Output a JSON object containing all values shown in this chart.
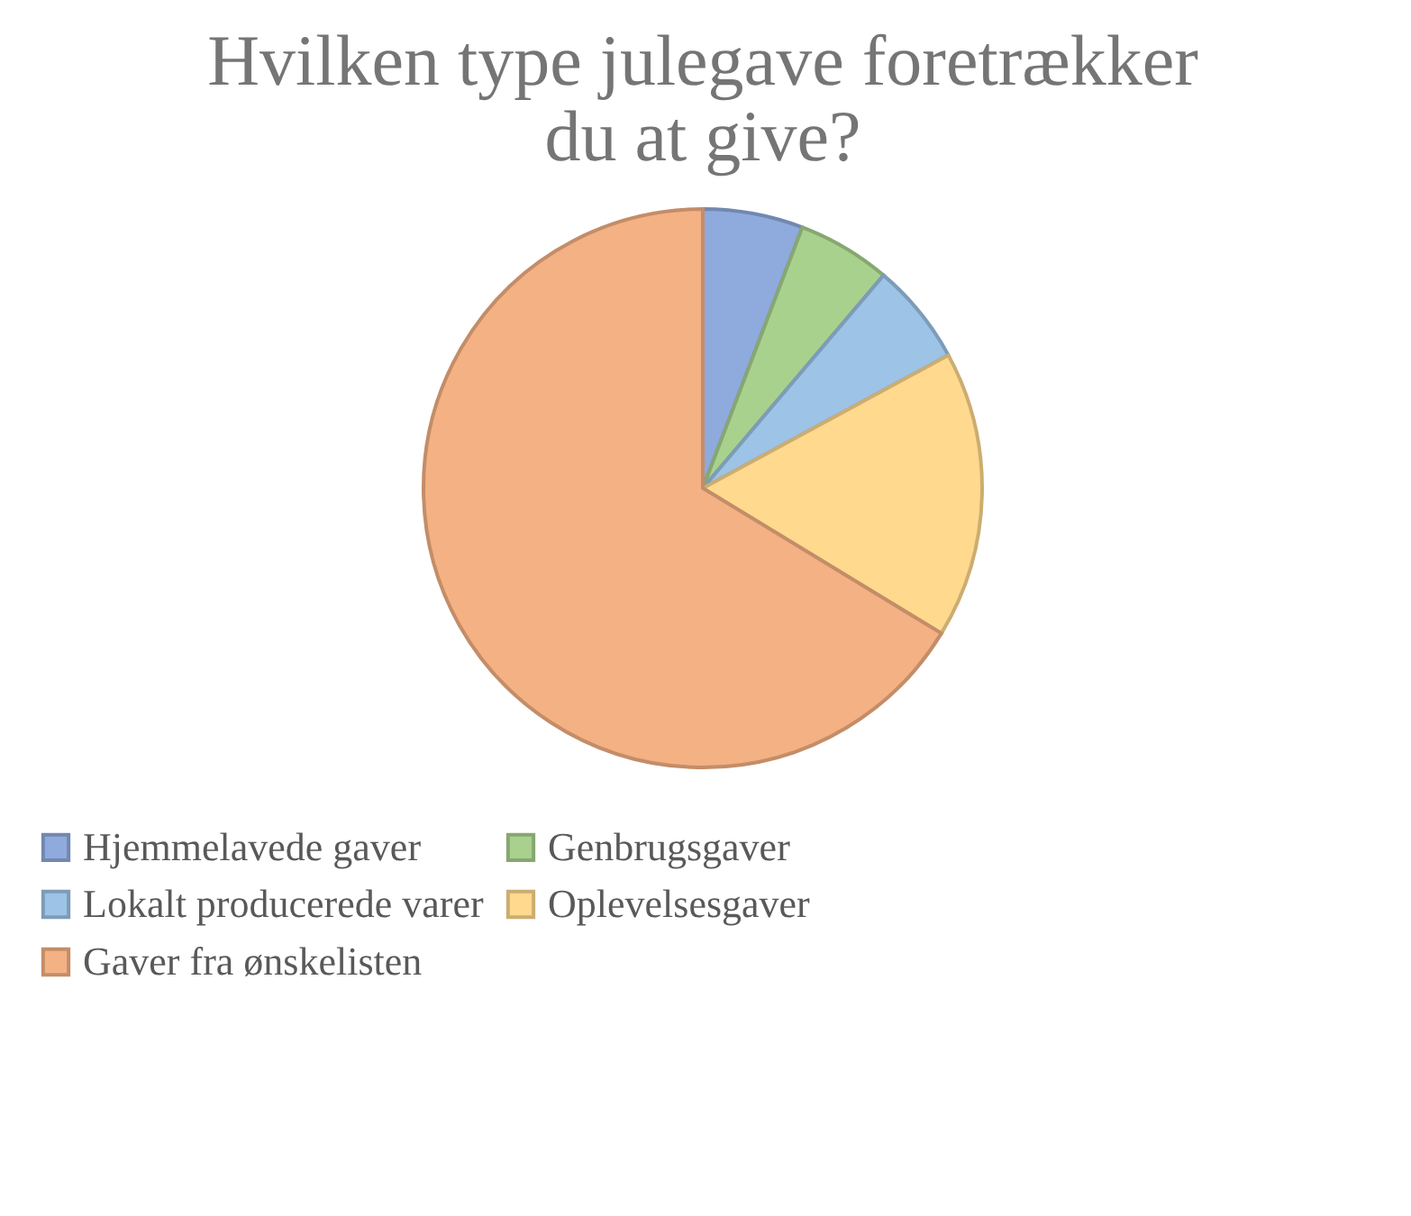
{
  "chart_data": {
    "type": "pie",
    "title": "Hvilken type julegave foretrækker du at give?",
    "categories": [
      "Hjemmelavede gaver",
      "Genbrugsgaver",
      "Lokalt producerede varer",
      "Oplevelsesgaver",
      "Gaver fra ønskelisten"
    ],
    "values": [
      5.8,
      5.4,
      5.9,
      16.6,
      66.3
    ],
    "colors": [
      "#8faadc",
      "#a9d18e",
      "#9dc3e6",
      "#ffd98e",
      "#f4b183"
    ],
    "legend": "bottom"
  }
}
